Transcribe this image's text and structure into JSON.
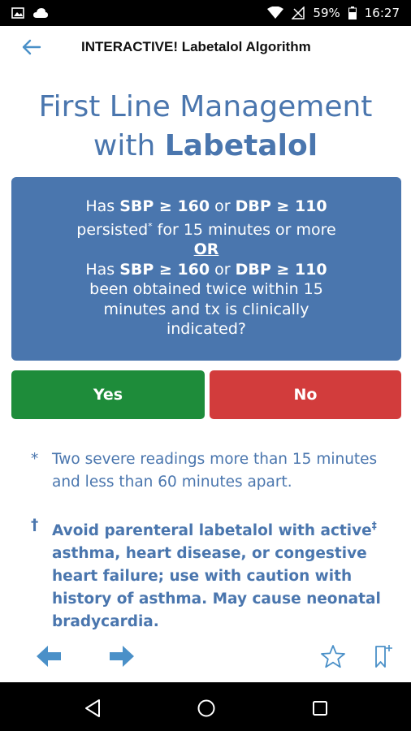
{
  "status_bar": {
    "battery": "59%",
    "time": "16:27"
  },
  "header": {
    "title": "INTERACTIVE! Labetalol Algorithm"
  },
  "page": {
    "title_line1": "First Line Management",
    "title_line2_prefix": "with ",
    "title_line2_bold": "Labetalol"
  },
  "question": {
    "l1_a": "Has ",
    "l1_sbp": "SBP ≥ 160",
    "l1_or": " or ",
    "l1_dbp": "DBP ≥ 110",
    "l2_a": "persisted",
    "l2_sup": "*",
    "l2_b": " for 15 minutes or more",
    "or_label": "OR",
    "l3_a": "Has ",
    "l3_sbp": "SBP ≥ 160",
    "l3_or": " or ",
    "l3_dbp": "DBP ≥ 110",
    "l4": "been obtained twice within 15",
    "l5": "minutes and tx is clinically",
    "l6": "indicated?"
  },
  "answers": {
    "yes": "Yes",
    "no": "No"
  },
  "footnotes": {
    "fn1_mark": "*",
    "fn1_text": "Two severe readings more than 15 minutes and less than 60 minutes apart.",
    "fn2_mark": "†",
    "fn2_text_a": "Avoid parenteral labetalol with active",
    "fn2_sup": "‡",
    "fn2_text_b": " asthma, heart disease, or congestive heart failure; use with caution with history of asthma. May cause neonatal bradycardia."
  },
  "colors": {
    "primary_blue": "#4a76ae",
    "yes_green": "#1e8c3a",
    "no_red": "#d23c3c"
  },
  "icons": {
    "back": "arrow-left-icon",
    "prev": "arrow-left-bold-icon",
    "next": "arrow-right-bold-icon",
    "favorite": "star-outline-icon",
    "bookmark": "bookmark-plus-icon"
  }
}
